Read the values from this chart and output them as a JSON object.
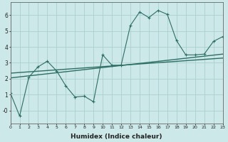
{
  "xlabel": "Humidex (Indice chaleur)",
  "background_color": "#cce8e8",
  "line_color": "#2d6e65",
  "grid_color": "#aacfcf",
  "x_min": 0,
  "x_max": 23,
  "y_min": -0.8,
  "y_max": 6.8,
  "series1_x": [
    0,
    1,
    2,
    3,
    4,
    5,
    6,
    7,
    8,
    9,
    10,
    11,
    12,
    13,
    14,
    15,
    16,
    17,
    18,
    19,
    20,
    21,
    22,
    23
  ],
  "series1_y": [
    1.1,
    -0.35,
    2.1,
    2.75,
    3.1,
    2.5,
    1.55,
    0.85,
    0.9,
    0.55,
    3.5,
    2.85,
    2.85,
    5.35,
    6.2,
    5.85,
    6.3,
    6.05,
    4.4,
    3.5,
    3.5,
    3.55,
    4.35,
    4.65
  ],
  "series2_x": [
    0,
    23
  ],
  "series2_y": [
    2.05,
    3.55
  ],
  "series3_x": [
    0,
    23
  ],
  "series3_y": [
    2.35,
    3.3
  ],
  "marker": "+"
}
